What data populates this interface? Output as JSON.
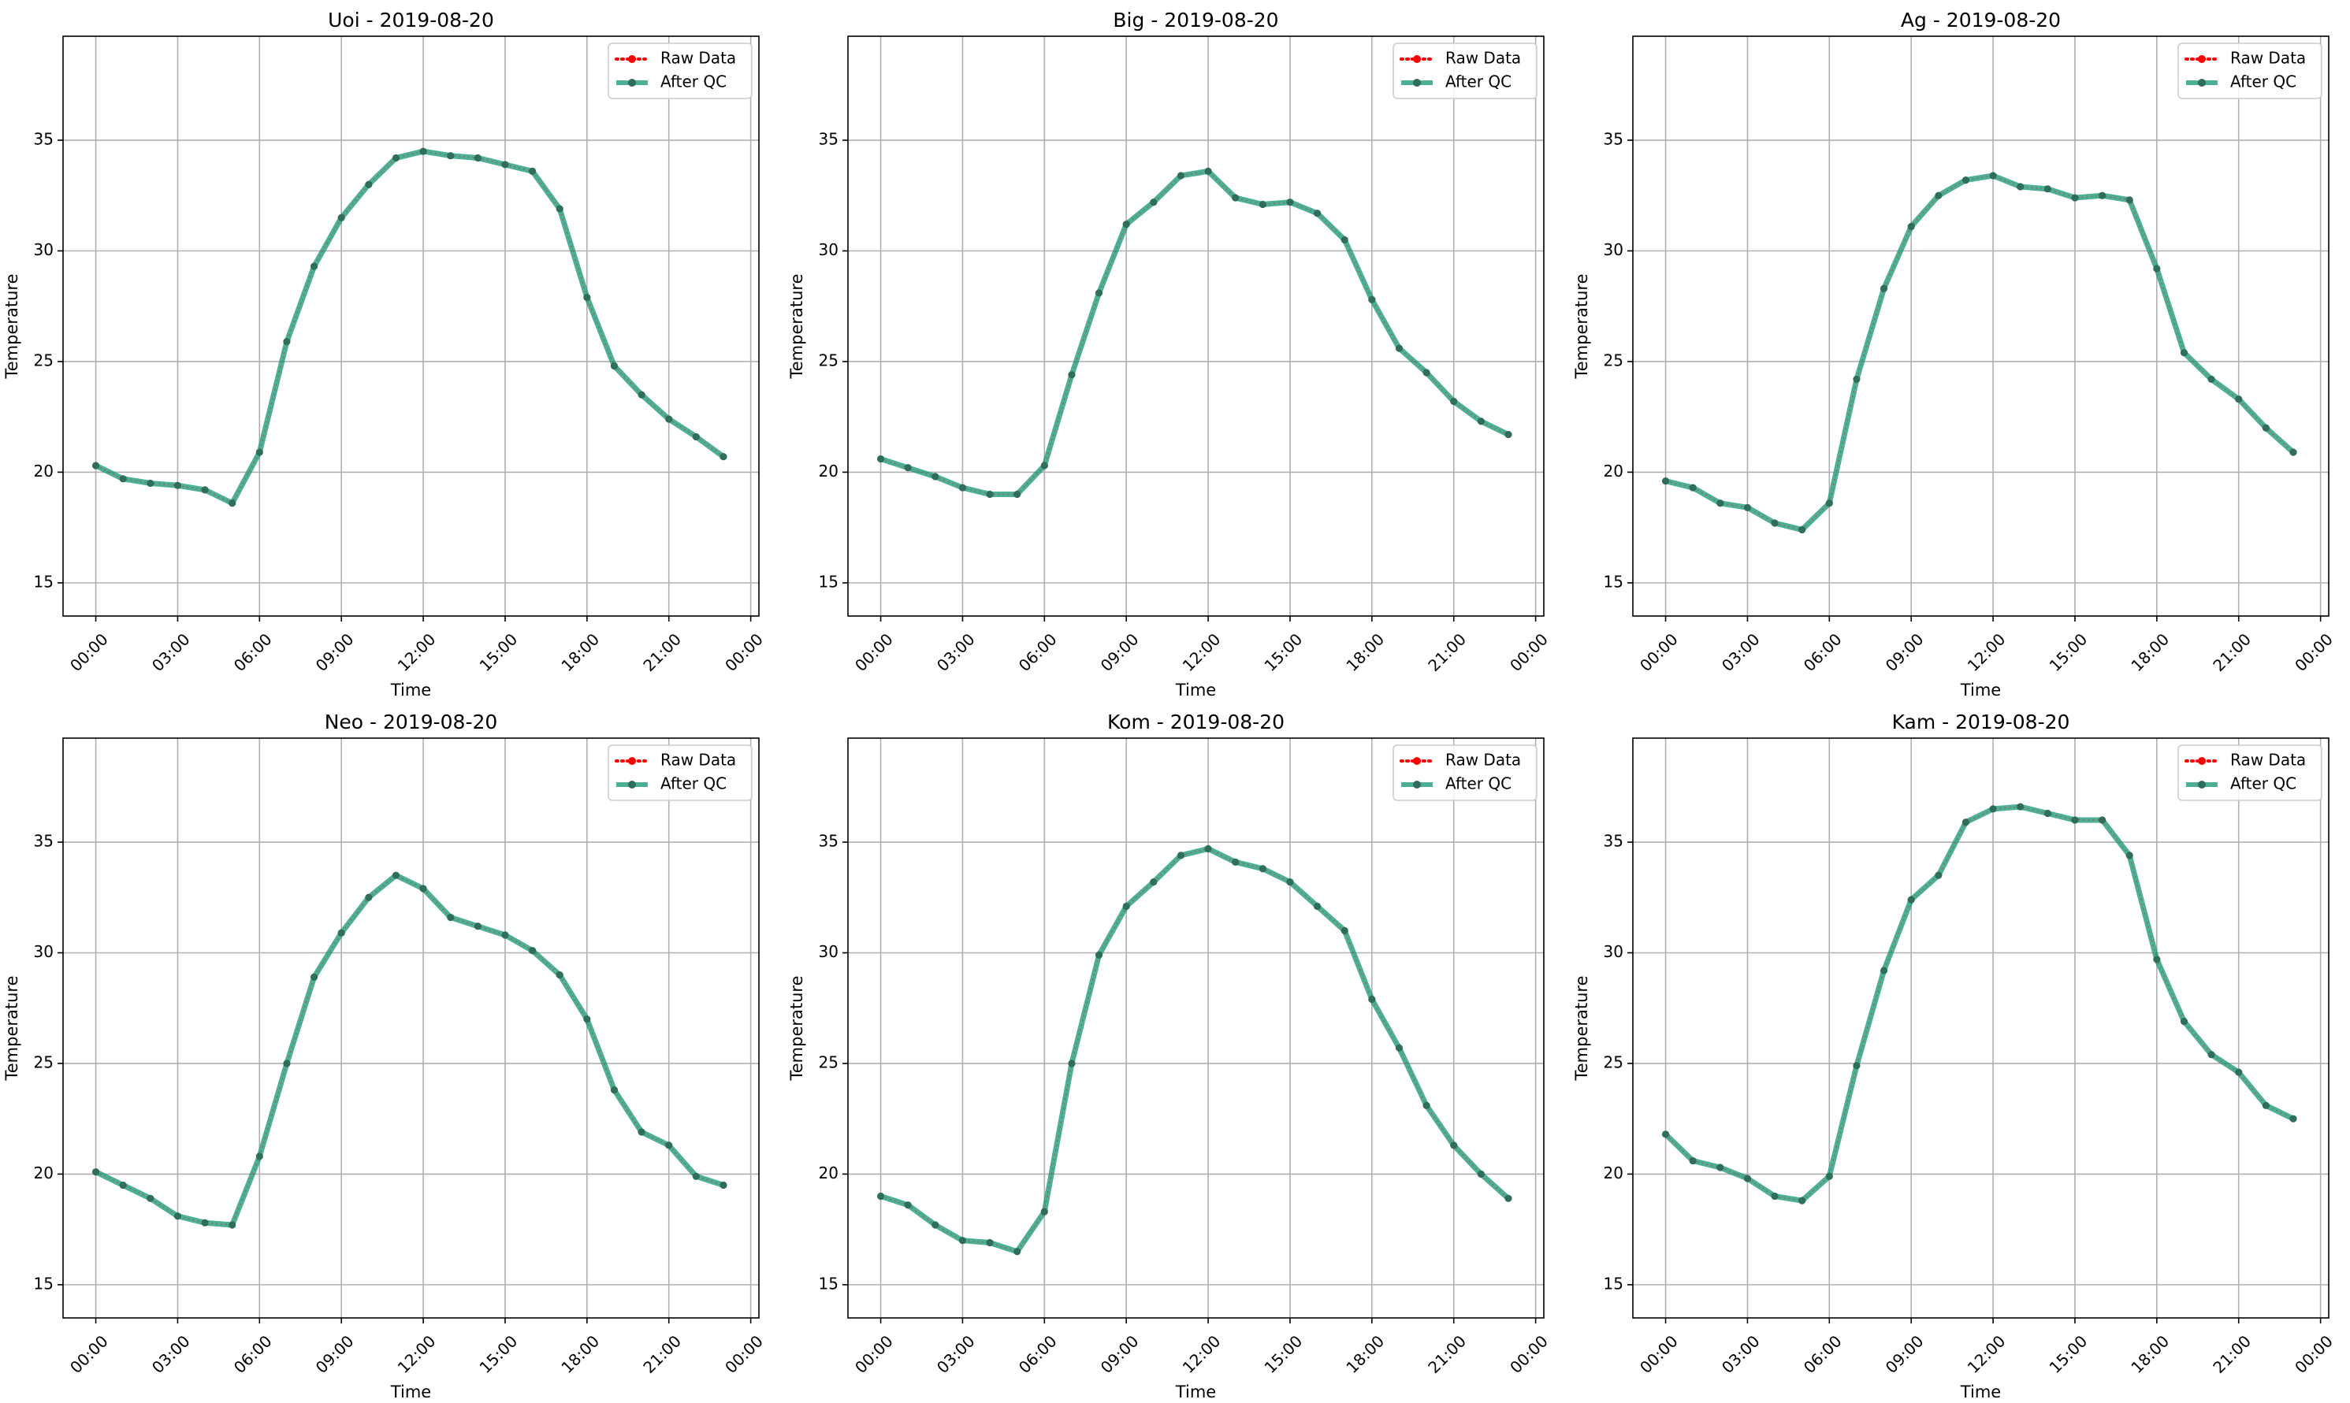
{
  "figure": {
    "x_tick_labels": [
      "00:00",
      "03:00",
      "06:00",
      "09:00",
      "12:00",
      "15:00",
      "18:00",
      "21:00",
      "00:00"
    ],
    "y_tick_labels": [
      "15",
      "20",
      "25",
      "30",
      "35"
    ]
  },
  "chart_data": [
    {
      "type": "line",
      "title": "Uoi - 2019-08-20",
      "xlabel": "Time",
      "ylabel": "Temperature",
      "x_unit": "hour of day",
      "x": [
        0,
        1,
        2,
        3,
        4,
        5,
        6,
        7,
        8,
        9,
        10,
        11,
        12,
        13,
        14,
        15,
        16,
        17,
        18,
        19,
        20,
        21,
        22,
        23
      ],
      "xlim": [
        -1.2,
        24.3
      ],
      "ylim": [
        13.5,
        39.7
      ],
      "grid": true,
      "legend_position": "top-right",
      "series": [
        {
          "name": "Raw Data",
          "style": "dotted-marker",
          "color": "#ff0000",
          "values": [
            20.3,
            19.7,
            19.5,
            19.4,
            19.2,
            18.6,
            20.9,
            25.9,
            29.3,
            31.5,
            33.0,
            34.2,
            34.5,
            34.3,
            34.2,
            33.9,
            33.6,
            31.9,
            27.9,
            24.8,
            23.5,
            22.4,
            21.6,
            20.7
          ]
        },
        {
          "name": "After QC",
          "style": "solid-marker",
          "color": "#1a9a7a",
          "values": [
            20.3,
            19.7,
            19.5,
            19.4,
            19.2,
            18.6,
            20.9,
            25.9,
            29.3,
            31.5,
            33.0,
            34.2,
            34.5,
            34.3,
            34.2,
            33.9,
            33.6,
            31.9,
            27.9,
            24.8,
            23.5,
            22.4,
            21.6,
            20.7
          ]
        }
      ]
    },
    {
      "type": "line",
      "title": "Big - 2019-08-20",
      "xlabel": "Time",
      "ylabel": "Temperature",
      "x_unit": "hour of day",
      "x": [
        0,
        1,
        2,
        3,
        4,
        5,
        6,
        7,
        8,
        9,
        10,
        11,
        12,
        13,
        14,
        15,
        16,
        17,
        18,
        19,
        20,
        21,
        22,
        23
      ],
      "xlim": [
        -1.2,
        24.3
      ],
      "ylim": [
        13.5,
        39.7
      ],
      "grid": true,
      "legend_position": "top-right",
      "series": [
        {
          "name": "Raw Data",
          "style": "dotted-marker",
          "color": "#ff0000",
          "values": [
            20.6,
            20.2,
            19.8,
            19.3,
            19.0,
            19.0,
            20.3,
            24.4,
            28.1,
            31.2,
            32.2,
            33.4,
            33.6,
            32.4,
            32.1,
            32.2,
            31.7,
            30.5,
            27.8,
            25.6,
            24.5,
            23.2,
            22.3,
            21.7
          ]
        },
        {
          "name": "After QC",
          "style": "solid-marker",
          "color": "#1a9a7a",
          "values": [
            20.6,
            20.2,
            19.8,
            19.3,
            19.0,
            19.0,
            20.3,
            24.4,
            28.1,
            31.2,
            32.2,
            33.4,
            33.6,
            32.4,
            32.1,
            32.2,
            31.7,
            30.5,
            27.8,
            25.6,
            24.5,
            23.2,
            22.3,
            21.7
          ]
        }
      ]
    },
    {
      "type": "line",
      "title": "Ag - 2019-08-20",
      "xlabel": "Time",
      "ylabel": "Temperature",
      "x_unit": "hour of day",
      "x": [
        0,
        1,
        2,
        3,
        4,
        5,
        6,
        7,
        8,
        9,
        10,
        11,
        12,
        13,
        14,
        15,
        16,
        17,
        18,
        19,
        20,
        21,
        22,
        23
      ],
      "xlim": [
        -1.2,
        24.3
      ],
      "ylim": [
        13.5,
        39.7
      ],
      "grid": true,
      "legend_position": "top-right",
      "series": [
        {
          "name": "Raw Data",
          "style": "dotted-marker",
          "color": "#ff0000",
          "values": [
            19.6,
            19.3,
            18.6,
            18.4,
            17.7,
            17.4,
            18.6,
            24.2,
            28.3,
            31.1,
            32.5,
            33.2,
            33.4,
            32.9,
            32.8,
            32.4,
            32.5,
            32.3,
            29.2,
            25.4,
            24.2,
            23.3,
            22.0,
            20.9
          ]
        },
        {
          "name": "After QC",
          "style": "solid-marker",
          "color": "#1a9a7a",
          "values": [
            19.6,
            19.3,
            18.6,
            18.4,
            17.7,
            17.4,
            18.6,
            24.2,
            28.3,
            31.1,
            32.5,
            33.2,
            33.4,
            32.9,
            32.8,
            32.4,
            32.5,
            32.3,
            29.2,
            25.4,
            24.2,
            23.3,
            22.0,
            20.9
          ]
        }
      ]
    },
    {
      "type": "line",
      "title": "Neo - 2019-08-20",
      "xlabel": "Time",
      "ylabel": "Temperature",
      "x_unit": "hour of day",
      "x": [
        0,
        1,
        2,
        3,
        4,
        5,
        6,
        7,
        8,
        9,
        10,
        11,
        12,
        13,
        14,
        15,
        16,
        17,
        18,
        19,
        20,
        21,
        22,
        23
      ],
      "xlim": [
        -1.2,
        24.3
      ],
      "ylim": [
        13.5,
        39.7
      ],
      "grid": true,
      "legend_position": "top-right",
      "series": [
        {
          "name": "Raw Data",
          "style": "dotted-marker",
          "color": "#ff0000",
          "values": [
            20.1,
            19.5,
            18.9,
            18.1,
            17.8,
            17.7,
            20.8,
            25.0,
            28.9,
            30.9,
            32.5,
            33.5,
            32.9,
            31.6,
            31.2,
            30.8,
            30.1,
            29.0,
            27.0,
            23.8,
            21.9,
            21.3,
            19.9,
            19.5
          ]
        },
        {
          "name": "After QC",
          "style": "solid-marker",
          "color": "#1a9a7a",
          "values": [
            20.1,
            19.5,
            18.9,
            18.1,
            17.8,
            17.7,
            20.8,
            25.0,
            28.9,
            30.9,
            32.5,
            33.5,
            32.9,
            31.6,
            31.2,
            30.8,
            30.1,
            29.0,
            27.0,
            23.8,
            21.9,
            21.3,
            19.9,
            19.5
          ]
        }
      ]
    },
    {
      "type": "line",
      "title": "Kom - 2019-08-20",
      "xlabel": "Time",
      "ylabel": "Temperature",
      "x_unit": "hour of day",
      "x": [
        0,
        1,
        2,
        3,
        4,
        5,
        6,
        7,
        8,
        9,
        10,
        11,
        12,
        13,
        14,
        15,
        16,
        17,
        18,
        19,
        20,
        21,
        22,
        23
      ],
      "xlim": [
        -1.2,
        24.3
      ],
      "ylim": [
        13.5,
        39.7
      ],
      "grid": true,
      "legend_position": "top-right",
      "series": [
        {
          "name": "Raw Data",
          "style": "dotted-marker",
          "color": "#ff0000",
          "values": [
            19.0,
            18.6,
            17.7,
            17.0,
            16.9,
            16.5,
            18.3,
            25.0,
            29.9,
            32.1,
            33.2,
            34.4,
            34.7,
            34.1,
            33.8,
            33.2,
            32.1,
            31.0,
            27.9,
            25.7,
            23.1,
            21.3,
            20.0,
            18.9
          ]
        },
        {
          "name": "After QC",
          "style": "solid-marker",
          "color": "#1a9a7a",
          "values": [
            19.0,
            18.6,
            17.7,
            17.0,
            16.9,
            16.5,
            18.3,
            25.0,
            29.9,
            32.1,
            33.2,
            34.4,
            34.7,
            34.1,
            33.8,
            33.2,
            32.1,
            31.0,
            27.9,
            25.7,
            23.1,
            21.3,
            20.0,
            18.9
          ]
        }
      ]
    },
    {
      "type": "line",
      "title": "Kam - 2019-08-20",
      "xlabel": "Time",
      "ylabel": "Temperature",
      "x_unit": "hour of day",
      "x": [
        0,
        1,
        2,
        3,
        4,
        5,
        6,
        7,
        8,
        9,
        10,
        11,
        12,
        13,
        14,
        15,
        16,
        17,
        18,
        19,
        20,
        21,
        22,
        23
      ],
      "xlim": [
        -1.2,
        24.3
      ],
      "ylim": [
        13.5,
        39.7
      ],
      "grid": true,
      "legend_position": "top-right",
      "series": [
        {
          "name": "Raw Data",
          "style": "dotted-marker",
          "color": "#ff0000",
          "values": [
            21.8,
            20.6,
            20.3,
            19.8,
            19.0,
            18.8,
            19.9,
            24.9,
            29.2,
            32.4,
            33.5,
            35.9,
            36.5,
            36.6,
            36.3,
            36.0,
            36.0,
            34.4,
            29.7,
            26.9,
            25.4,
            24.6,
            23.1,
            22.5
          ]
        },
        {
          "name": "After QC",
          "style": "solid-marker",
          "color": "#1a9a7a",
          "values": [
            21.8,
            20.6,
            20.3,
            19.8,
            19.0,
            18.8,
            19.9,
            24.9,
            29.2,
            32.4,
            33.5,
            35.9,
            36.5,
            36.6,
            36.3,
            36.0,
            36.0,
            34.4,
            29.7,
            26.9,
            25.4,
            24.6,
            23.1,
            22.5
          ]
        }
      ]
    }
  ]
}
